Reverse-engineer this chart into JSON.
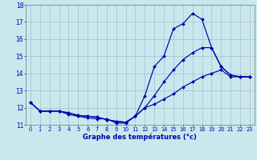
{
  "title": "Graphe des températures (°c)",
  "background_color": "#c8e8ee",
  "line_color": "#0000aa",
  "grid_color": "#aabbcc",
  "xlim": [
    -0.5,
    23.5
  ],
  "ylim": [
    11,
    18
  ],
  "xticks": [
    0,
    1,
    2,
    3,
    4,
    5,
    6,
    7,
    8,
    9,
    10,
    11,
    12,
    13,
    14,
    15,
    16,
    17,
    18,
    19,
    20,
    21,
    22,
    23
  ],
  "yticks": [
    11,
    12,
    13,
    14,
    15,
    16,
    17,
    18
  ],
  "line1_x": [
    0,
    1,
    2,
    3,
    4,
    5,
    6,
    7,
    8,
    9,
    10,
    11,
    12,
    13,
    14,
    15,
    16,
    17,
    18,
    19,
    20,
    21,
    22,
    23
  ],
  "line1_y": [
    12.3,
    11.8,
    11.8,
    11.8,
    11.6,
    11.5,
    11.4,
    11.35,
    11.35,
    11.1,
    11.1,
    11.5,
    12.7,
    14.4,
    15.0,
    16.6,
    16.9,
    17.5,
    17.15,
    15.5,
    14.4,
    13.9,
    13.8,
    13.8
  ],
  "line2_x": [
    0,
    1,
    2,
    3,
    4,
    5,
    6,
    7,
    8,
    9,
    10,
    11,
    12,
    13,
    14,
    15,
    16,
    17,
    18,
    19,
    20,
    21,
    22,
    23
  ],
  "line2_y": [
    12.3,
    11.8,
    11.8,
    11.8,
    11.7,
    11.55,
    11.5,
    11.45,
    11.3,
    11.2,
    11.15,
    11.5,
    12.0,
    12.7,
    13.5,
    14.2,
    14.8,
    15.2,
    15.5,
    15.5,
    14.4,
    13.9,
    13.8,
    13.8
  ],
  "line3_x": [
    0,
    1,
    2,
    3,
    4,
    5,
    6,
    7,
    8,
    9,
    10,
    11,
    12,
    13,
    14,
    15,
    16,
    17,
    18,
    19,
    20,
    21,
    22,
    23
  ],
  "line3_y": [
    12.3,
    11.8,
    11.8,
    11.8,
    11.7,
    11.55,
    11.5,
    11.45,
    11.3,
    11.2,
    11.15,
    11.5,
    12.0,
    12.2,
    12.5,
    12.8,
    13.2,
    13.5,
    13.8,
    14.0,
    14.2,
    13.8,
    13.8,
    13.8
  ]
}
